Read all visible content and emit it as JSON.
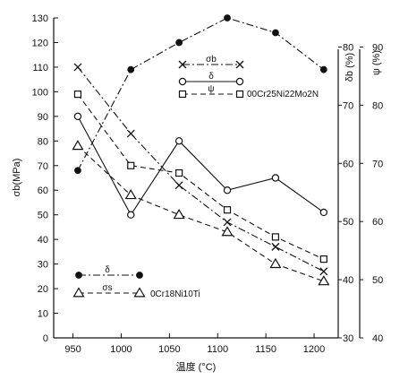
{
  "chart_data": {
    "type": "line",
    "xlabel": "温度 (°C)",
    "ylabel_left": "σb(MPa)",
    "ylabel_right1": "δb (%)",
    "ylabel_right2": "ψ (%)",
    "xlim": [
      930,
      1225
    ],
    "ylim_left": [
      0,
      130
    ],
    "ylim_right1": [
      30,
      85
    ],
    "ylim_right2": [
      40,
      95
    ],
    "x_ticks": [
      950,
      1000,
      1050,
      1100,
      1150,
      1200
    ],
    "y_left_ticks": [
      0,
      10,
      20,
      30,
      40,
      50,
      60,
      70,
      80,
      90,
      100,
      110,
      120,
      130
    ],
    "y_right1_ticks": [
      30,
      40,
      50,
      60,
      70,
      80
    ],
    "y_right2_ticks": [
      40,
      50,
      60,
      70,
      80,
      90
    ],
    "grid": false,
    "legends": [
      {
        "material": "00Cr25Ni22Mo2N",
        "entries": [
          {
            "symbol": "σb",
            "marker": "x",
            "dash": "dashdot"
          },
          {
            "symbol": "δ",
            "marker": "circle",
            "dash": "solid"
          },
          {
            "symbol": "ψ",
            "marker": "square",
            "dash": "dashed"
          }
        ]
      },
      {
        "material": "0Cr18Ni10Ti",
        "entries": [
          {
            "symbol": "δ",
            "marker": "filled-circle",
            "dash": "dashdot"
          },
          {
            "symbol": "σs",
            "marker": "triangle",
            "dash": "dashed"
          }
        ]
      }
    ],
    "series": [
      {
        "key": "ni_sigma_b",
        "label": "σb",
        "axis": "left",
        "marker": "x",
        "dash": "dashdot",
        "x": [
          955,
          1010,
          1060,
          1110,
          1160,
          1210
        ],
        "values": [
          110,
          83,
          62,
          47,
          37,
          27
        ]
      },
      {
        "key": "ni_delta",
        "label": "δ",
        "axis": "left",
        "marker": "circle",
        "dash": "solid",
        "x": [
          955,
          1010,
          1060,
          1110,
          1160,
          1210
        ],
        "values": [
          90,
          50,
          80,
          60,
          65,
          51
        ]
      },
      {
        "key": "ni_psi",
        "label": "ψ",
        "axis": "left",
        "marker": "square",
        "dash": "dashed",
        "x": [
          955,
          1010,
          1060,
          1110,
          1160,
          1210
        ],
        "values": [
          99,
          70,
          67,
          52,
          41,
          32
        ]
      },
      {
        "key": "ti_delta",
        "label": "δ",
        "axis": "left",
        "marker": "filled-circle",
        "dash": "dashdot",
        "x": [
          955,
          1010,
          1060,
          1110,
          1160,
          1210
        ],
        "values": [
          68,
          109,
          120,
          130,
          124,
          109
        ]
      },
      {
        "key": "ti_sigma_s",
        "label": "σs",
        "axis": "left",
        "marker": "triangle",
        "dash": "dashed",
        "x": [
          955,
          1010,
          1060,
          1110,
          1160,
          1210
        ],
        "values": [
          78,
          58,
          50,
          43,
          30,
          23
        ]
      }
    ]
  }
}
